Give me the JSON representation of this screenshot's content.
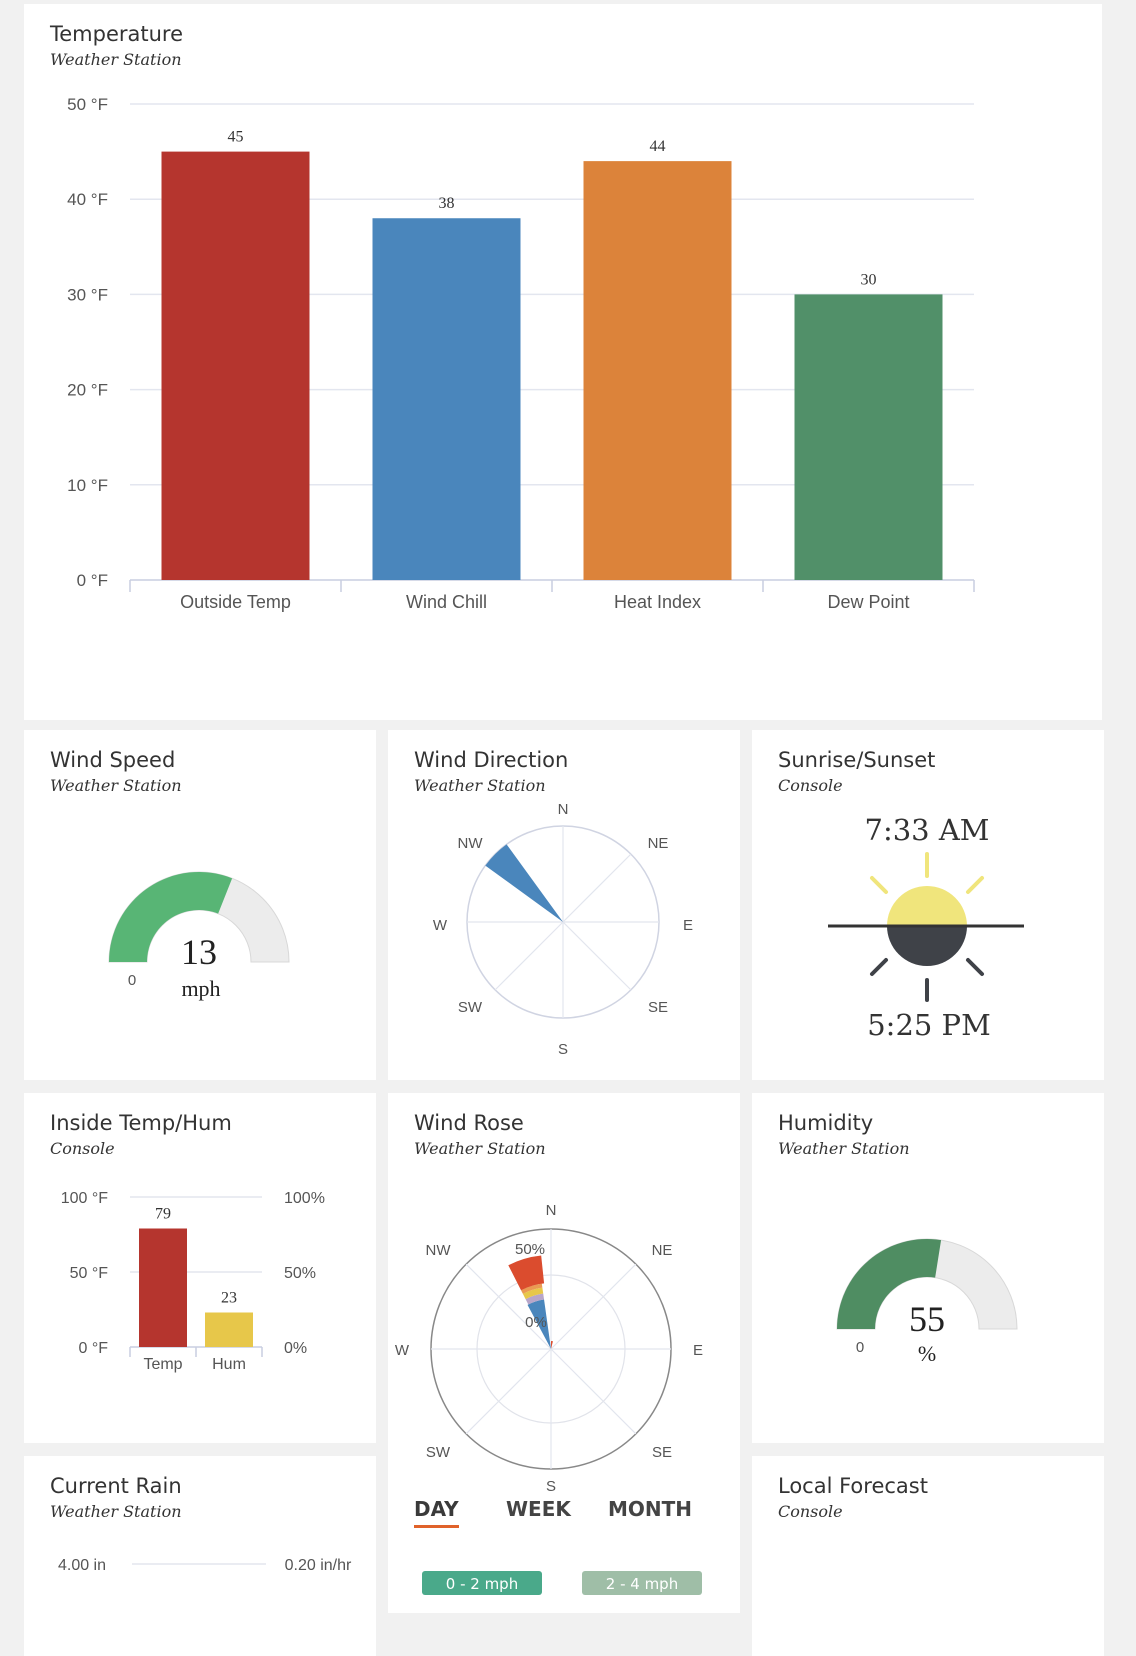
{
  "colors": {
    "outside_temp": "#b5352e",
    "wind_chill": "#4a86bc",
    "heat_index": "#dc833a",
    "dew_point": "#519069",
    "wind_speed_gauge": "#58b575",
    "humidity_gauge": "#4f8d62",
    "gauge_bg": "#ececec",
    "inside_temp": "#b5352e",
    "inside_hum": "#e7c74a",
    "sun": "#f0e57c",
    "sun_dark": "#3f4248",
    "day_tab_underline": "#e0622a"
  },
  "temperature": {
    "title": "Temperature",
    "subtitle": "Weather Station",
    "chart_data": {
      "type": "bar",
      "categories": [
        "Outside Temp",
        "Wind Chill",
        "Heat Index",
        "Dew Point"
      ],
      "values": [
        45,
        38,
        44,
        30
      ],
      "data_labels": [
        "45",
        "38",
        "44",
        "30"
      ],
      "y_ticks": [
        "0 °F",
        "10 °F",
        "20 °F",
        "30 °F",
        "40 °F",
        "50 °F"
      ],
      "ylim": [
        0,
        50
      ],
      "title": "Temperature"
    }
  },
  "wind_speed": {
    "title": "Wind Speed",
    "subtitle": "Weather Station",
    "value": "13",
    "unit": "mph",
    "min_label": "0",
    "fraction": 0.62
  },
  "wind_direction": {
    "title": "Wind Direction",
    "subtitle": "Weather Station",
    "compass": [
      "N",
      "NE",
      "E",
      "SE",
      "S",
      "SW",
      "W",
      "NW"
    ],
    "direction_deg": 315
  },
  "sun": {
    "title": "Sunrise/Sunset",
    "subtitle": "Console",
    "sunrise": "7:33 AM",
    "sunset": "5:25 PM"
  },
  "inside": {
    "title": "Inside Temp/Hum",
    "subtitle": "Console",
    "chart_data": {
      "type": "bar",
      "categories": [
        "Temp",
        "Hum"
      ],
      "values": [
        79,
        23
      ],
      "data_labels": [
        "79",
        "23"
      ],
      "left_ticks": [
        "0 °F",
        "50 °F",
        "100 °F"
      ],
      "right_ticks": [
        "0%",
        "50%",
        "100%"
      ],
      "ylim": [
        0,
        100
      ]
    }
  },
  "wind_rose": {
    "title": "Wind Rose",
    "subtitle": "Weather Station",
    "compass": [
      "N",
      "NE",
      "E",
      "SE",
      "S",
      "SW",
      "W",
      "NW"
    ],
    "ring_labels": [
      "0%",
      "50%"
    ],
    "tabs": [
      "DAY",
      "WEEK",
      "MONTH"
    ],
    "active_tab": "DAY",
    "legend": [
      "0 - 2 mph",
      "2 - 4 mph"
    ]
  },
  "humidity": {
    "title": "Humidity",
    "subtitle": "Weather Station",
    "value": "55",
    "unit": "%",
    "min_label": "0",
    "fraction": 0.55
  },
  "rain": {
    "title": "Current Rain",
    "subtitle": "Weather Station",
    "left_tick": "4.00 in",
    "right_tick": "0.20 in/hr"
  },
  "forecast": {
    "title": "Local Forecast",
    "subtitle": "Console"
  }
}
